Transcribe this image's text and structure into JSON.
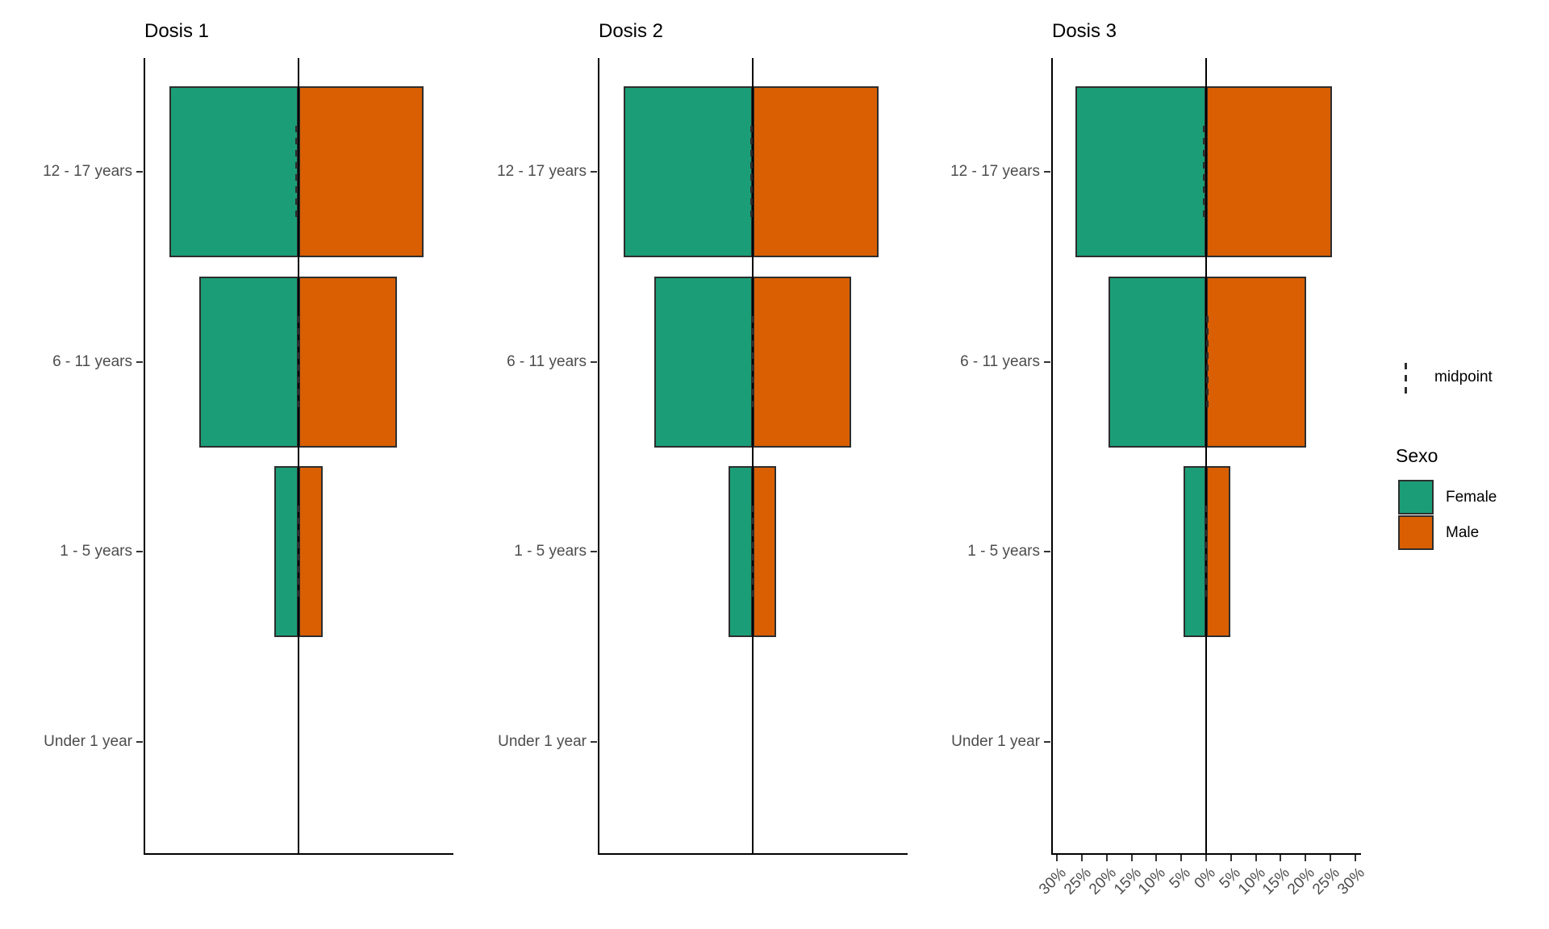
{
  "chart_data": {
    "type": "bar",
    "subtype": "faceted population pyramid (diverging horizontal bars)",
    "categories": [
      "12 - 17 years",
      "6 - 11 years",
      "1 - 5 years",
      "Under 1 year"
    ],
    "unit": "%",
    "facets": [
      {
        "title": "Dosis 1",
        "series": [
          {
            "name": "Female",
            "values": [
              26.0,
              20.0,
              4.9,
              0
            ]
          },
          {
            "name": "Male",
            "values": [
              25.2,
              19.8,
              4.9,
              0
            ]
          }
        ],
        "midpoints": [
          -0.4,
          -0.1,
          0.0,
          null
        ]
      },
      {
        "title": "Dosis 2",
        "series": [
          {
            "name": "Female",
            "values": [
              26.0,
              19.8,
              4.9,
              0
            ]
          },
          {
            "name": "Male",
            "values": [
              25.4,
              19.8,
              4.7,
              0
            ]
          }
        ],
        "midpoints": [
          -0.3,
          0.0,
          -0.1,
          null
        ]
      },
      {
        "title": "Dosis 3",
        "series": [
          {
            "name": "Female",
            "values": [
              26.3,
              19.7,
              4.6,
              0
            ]
          },
          {
            "name": "Male",
            "values": [
              25.4,
              20.2,
              4.9,
              0
            ]
          }
        ],
        "midpoints": [
          -0.45,
          0.25,
          0.15,
          null
        ]
      }
    ],
    "x_axis": {
      "range": [
        -31.2,
        31.2
      ],
      "tick_values": [
        -30,
        -25,
        -20,
        -15,
        -10,
        -5,
        0,
        5,
        10,
        15,
        20,
        25,
        30
      ],
      "tick_labels": [
        "30%",
        "25%",
        "20%",
        "15%",
        "10%",
        "5%",
        "0%",
        "5%",
        "10%",
        "15%",
        "20%",
        "25%",
        "30%"
      ],
      "labels_shown_on_facet": "Dosis 3",
      "label_rotation_deg": 45
    },
    "grid": false,
    "legend_position": "right",
    "legend": {
      "midpoint_label": "midpoint",
      "sexo_title": "Sexo",
      "items": [
        {
          "label": "Female",
          "color": "#1B9E77"
        },
        {
          "label": "Male",
          "color": "#D95F02"
        }
      ]
    },
    "colors": {
      "female": "#1B9E77",
      "male": "#D95F02",
      "bar_border": "#2e2e2e",
      "axis_line": "#000000",
      "axis_text": "#4d4d4d",
      "zero_line": "#000000"
    }
  }
}
